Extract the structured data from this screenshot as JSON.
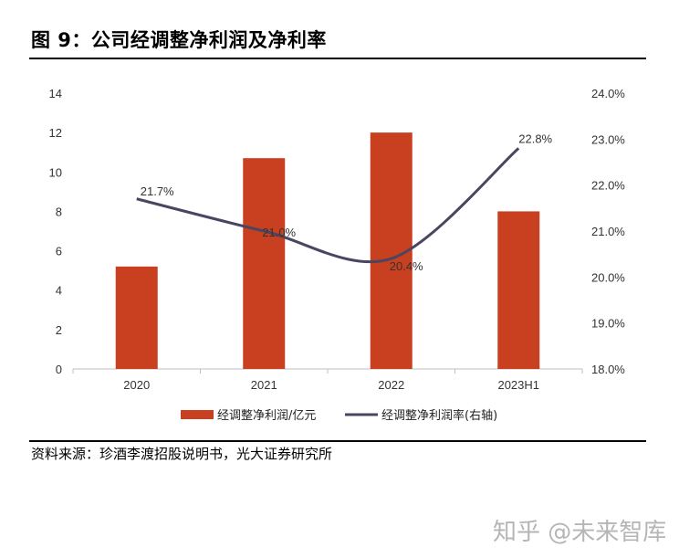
{
  "figure": {
    "title": "图 9：公司经调整净利润及净利率",
    "source": "资料来源：珍酒李渡招股说明书，光大证券研究所",
    "watermark": "知乎 @未来智库"
  },
  "colors": {
    "bar": "#c8401f",
    "line": "#4a4560",
    "axis": "#bfbfbf"
  },
  "chart_data": {
    "type": "bar",
    "categories": [
      "2020",
      "2021",
      "2022",
      "2023H1"
    ],
    "series": [
      {
        "name": "经调整净利润/亿元",
        "type": "bar",
        "axis": "left",
        "values": [
          5.2,
          10.7,
          12.0,
          8.0
        ]
      },
      {
        "name": "经调整净利润率(右轴)",
        "type": "line",
        "axis": "right",
        "smooth": true,
        "values": [
          21.7,
          21.0,
          20.4,
          22.8
        ],
        "labels": [
          "21.7%",
          "21.0%",
          "20.4%",
          "22.8%"
        ]
      }
    ],
    "ylim": [
      0,
      14
    ],
    "yticks": [
      "0",
      "2",
      "4",
      "6",
      "8",
      "10",
      "12",
      "14"
    ],
    "y2lim": [
      18.0,
      24.0
    ],
    "y2ticks": [
      "18.0%",
      "19.0%",
      "20.0%",
      "21.0%",
      "22.0%",
      "23.0%",
      "24.0%"
    ],
    "legend": [
      "经调整净利润/亿元",
      "经调整净利润率(右轴)"
    ],
    "legend_position": "bottom",
    "grid": false
  }
}
